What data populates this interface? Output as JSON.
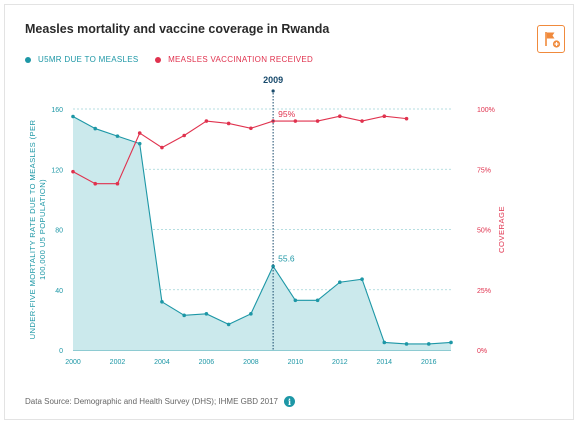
{
  "title": "Measles mortality and vaccine coverage in Rwanda",
  "source_text": "Data Source: Demographic and Health Survey (DHS); IHME GBD 2017",
  "icons": {
    "flag": "flag-icon",
    "info": "info-icon"
  },
  "colors": {
    "teal": "#1d97a6",
    "teal_fill": "#cbe9ec",
    "red": "#e0324e",
    "accent": "#f08a3c"
  },
  "chart_data": {
    "type": "line",
    "legend": [
      "U5MR DUE TO MEASLES",
      "MEASLES VACCINATION RECEIVED"
    ],
    "legend_placement": "top-left",
    "x": [
      2000,
      2001,
      2002,
      2003,
      2004,
      2005,
      2006,
      2007,
      2008,
      2009,
      2010,
      2011,
      2012,
      2013,
      2014,
      2015,
      2016,
      2017
    ],
    "xticks": [
      "2000",
      "2002",
      "2004",
      "2006",
      "2008",
      "2010",
      "2012",
      "2014",
      "2016"
    ],
    "series": [
      {
        "name": "U5MR DUE TO MEASLES",
        "axis": "left",
        "style": "area",
        "x": [
          2000,
          2001,
          2002,
          2003,
          2004,
          2005,
          2006,
          2007,
          2008,
          2009,
          2010,
          2011,
          2012,
          2013,
          2014,
          2015,
          2016,
          2017
        ],
        "values": [
          155,
          147,
          142,
          137,
          32,
          23,
          24,
          17,
          24,
          55.6,
          33,
          33,
          45,
          47,
          5,
          4,
          4,
          5
        ]
      },
      {
        "name": "MEASLES VACCINATION RECEIVED",
        "axis": "right",
        "style": "line",
        "x": [
          2000,
          2001,
          2002,
          2003,
          2004,
          2005,
          2006,
          2007,
          2008,
          2009,
          2010,
          2011,
          2012,
          2013,
          2014,
          2015
        ],
        "values": [
          74,
          69,
          69,
          90,
          84,
          89,
          95,
          94,
          92,
          95,
          95,
          95,
          97,
          95,
          97,
          96
        ]
      }
    ],
    "ylabel_left": "UNDER-FIVE MORTALITY RATE DUE TO MEASLES (PER 100,000 U5 POPULATION)",
    "ylabel_left_lines": [
      "UNDER-FIVE MORTALITY RATE DUE TO MEASLES (PER",
      "100,000 U5 POPULATION)"
    ],
    "ylim_left": [
      0,
      160
    ],
    "yticks_left": [
      "0",
      "40",
      "80",
      "120",
      "160"
    ],
    "ylabel_right": "COVERAGE",
    "ylim_right": [
      0,
      100
    ],
    "yticks_right": [
      "0%",
      "25%",
      "50%",
      "75%",
      "100%"
    ],
    "grid": true,
    "highlight": {
      "year": "2009",
      "u5mr_label": "55.6",
      "coverage_label": "95%"
    }
  }
}
